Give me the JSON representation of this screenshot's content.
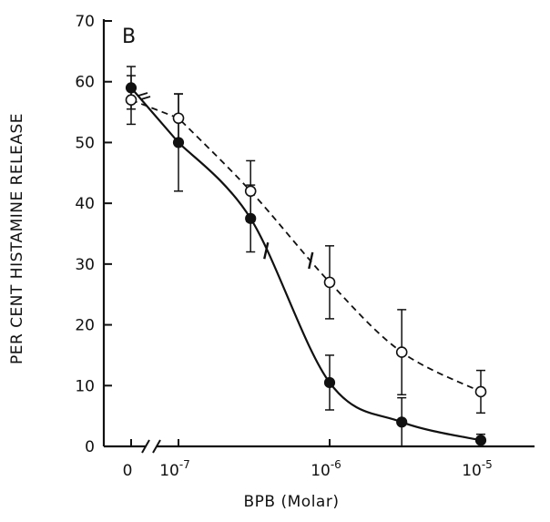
{
  "chart_data": {
    "type": "scatter",
    "panel_label": "B",
    "xlabel": "BPB (Molar)",
    "ylabel": "PER CENT HISTAMINE RELEASE",
    "x_scale": "log with break at 0",
    "xticks": [
      {
        "value": 0,
        "base": "0",
        "exp": ""
      },
      {
        "value": 1e-07,
        "base": "10",
        "exp": "-7"
      },
      {
        "value": 1e-06,
        "base": "10",
        "exp": "-6"
      },
      {
        "value": 1e-05,
        "base": "10",
        "exp": "-5"
      }
    ],
    "yticks": [
      0,
      10,
      20,
      30,
      40,
      50,
      60,
      70
    ],
    "ylim": [
      0,
      70
    ],
    "series": [
      {
        "marker": "filled-circle",
        "line": "solid",
        "points": [
          {
            "x": 0,
            "y": 59,
            "err": 3.5
          },
          {
            "x": 1e-07,
            "y": 50,
            "err": 8
          },
          {
            "x": 3e-07,
            "y": 37.5,
            "err": 5.5
          },
          {
            "x": 1e-06,
            "y": 10.5,
            "err": 4.5
          },
          {
            "x": 3e-06,
            "y": 4,
            "err": 4
          },
          {
            "x": 1e-05,
            "y": 1,
            "err": 1
          }
        ],
        "midpoint_x": 3.8e-07
      },
      {
        "marker": "open-circle",
        "line": "dashed",
        "points": [
          {
            "x": 0,
            "y": 57,
            "err": 4
          },
          {
            "x": 1e-07,
            "y": 54,
            "err": 4
          },
          {
            "x": 3e-07,
            "y": 42,
            "err": 5
          },
          {
            "x": 1e-06,
            "y": 27,
            "err": 6
          },
          {
            "x": 3e-06,
            "y": 15.5,
            "err": 7
          },
          {
            "x": 1e-05,
            "y": 9,
            "err": 3.5
          }
        ],
        "midpoint_x": 7.5e-07
      }
    ]
  }
}
